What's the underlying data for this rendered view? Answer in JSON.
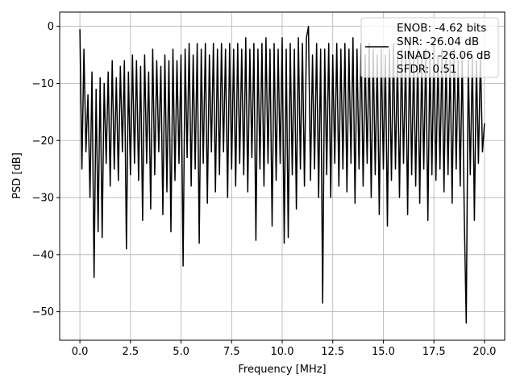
{
  "chart_data": {
    "type": "line",
    "title": "",
    "xlabel": "Frequency [MHz]",
    "ylabel": "PSD [dB]",
    "xlim": [
      -1.0,
      21.0
    ],
    "ylim": [
      -55,
      2.5
    ],
    "grid": true,
    "legend_placement": "top-right",
    "xticks": [
      0.0,
      2.5,
      5.0,
      7.5,
      10.0,
      12.5,
      15.0,
      17.5,
      20.0
    ],
    "xtick_labels": [
      "0.0",
      "2.5",
      "5.0",
      "7.5",
      "10.0",
      "12.5",
      "15.0",
      "17.5",
      "20.0"
    ],
    "yticks": [
      0,
      -10,
      -20,
      -30,
      -40,
      -50
    ],
    "ytick_labels": [
      "0",
      "−10",
      "−20",
      "−30",
      "−40",
      "−50"
    ],
    "legend": {
      "lines": [
        "ENOB: -4.62 bits",
        "SNR: -26.04 dB",
        "SINAD: -26.06 dB",
        "SFDR: 0.51"
      ]
    },
    "series": [
      {
        "name": "PSD",
        "color": "#000000",
        "x_start": 0.0,
        "x_step": 0.1,
        "values": [
          -0.5,
          -25,
          -4,
          -22,
          -12,
          -30,
          -8,
          -44,
          -11,
          -36,
          -9,
          -37,
          -10,
          -24,
          -8,
          -28,
          -6,
          -25,
          -9,
          -27,
          -7,
          -22,
          -6,
          -39,
          -8,
          -26,
          -5,
          -24,
          -6,
          -27,
          -7,
          -34,
          -5,
          -24,
          -8,
          -32,
          -4,
          -26,
          -6,
          -22,
          -7,
          -33,
          -5,
          -29,
          -6,
          -36,
          -4,
          -27,
          -6,
          -24,
          -5,
          -42,
          -4,
          -23,
          -3,
          -28,
          -5,
          -25,
          -3,
          -38,
          -4,
          -24,
          -3,
          -31,
          -5,
          -22,
          -3,
          -29,
          -4,
          -26,
          -3,
          -22,
          -4,
          -30,
          -3,
          -25,
          -4,
          -28,
          -3,
          -24,
          -4,
          -26,
          -2,
          -29,
          -4,
          -23,
          -3,
          -37.5,
          -4,
          -25,
          -3,
          -28,
          -2,
          -24,
          -4,
          -35,
          -3,
          -27,
          -4,
          -24,
          -2,
          -38,
          -4,
          -37,
          -3,
          -26,
          -4,
          -32,
          -2,
          -25,
          -3,
          -28,
          -2,
          0,
          -27,
          -5,
          -25,
          -3,
          -30,
          -4,
          -48.5,
          -4,
          -26,
          -3,
          -30,
          -5,
          -24,
          -3,
          -28,
          -4,
          -25,
          -3,
          -29,
          -4,
          -24,
          -2,
          -31,
          -4,
          -25,
          -3,
          -28,
          -5,
          -24,
          -3,
          -30,
          -4,
          -26,
          -5,
          -33,
          -4,
          -25,
          -5,
          -35,
          -4,
          -27,
          -3,
          -25,
          -5,
          -30,
          -4,
          -24,
          -5,
          -33,
          -3,
          -26,
          -5,
          -28,
          -4,
          -31,
          -5,
          -25,
          -4,
          -34,
          -5,
          -26,
          -3,
          -27,
          -5,
          -25,
          -4,
          -29,
          -5,
          -26,
          -6,
          -31,
          -4,
          -25,
          -6,
          -28,
          -5,
          -33,
          -52,
          -6,
          -26,
          -5,
          -34,
          -6,
          -24,
          -5,
          -22,
          -17
        ]
      }
    ]
  }
}
